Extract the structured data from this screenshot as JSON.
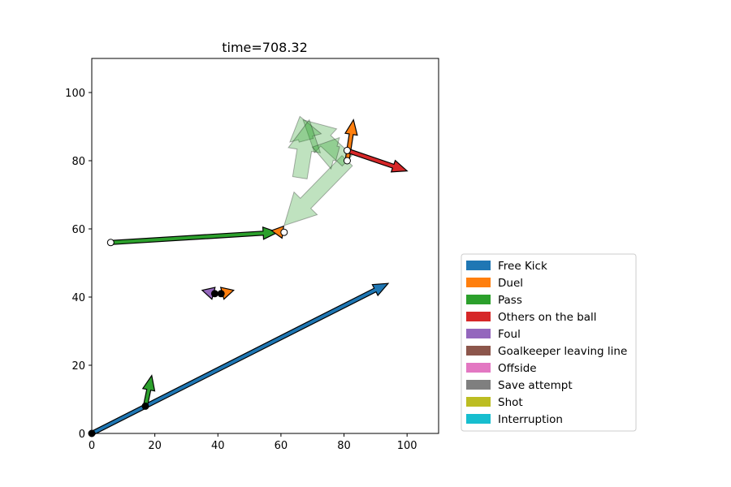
{
  "chart_data": {
    "type": "scatter",
    "title": "time=708.32",
    "xlabel": "",
    "ylabel": "",
    "xlim": [
      0,
      110
    ],
    "ylim": [
      0,
      110
    ],
    "x_ticks": [
      0,
      20,
      40,
      60,
      80,
      100
    ],
    "y_ticks": [
      0,
      20,
      40,
      60,
      80,
      100
    ],
    "grid": false,
    "legend_position": "outside-right-bottom",
    "legend": [
      {
        "label": "Free Kick",
        "color": "#1f77b4"
      },
      {
        "label": "Duel",
        "color": "#ff7f0e"
      },
      {
        "label": "Pass",
        "color": "#2ca02c"
      },
      {
        "label": "Others on the ball",
        "color": "#d62728"
      },
      {
        "label": "Foul",
        "color": "#9467bd"
      },
      {
        "label": "Goalkeeper leaving line",
        "color": "#8c564b"
      },
      {
        "label": "Offside",
        "color": "#e377c2"
      },
      {
        "label": "Save attempt",
        "color": "#7f7f7f"
      },
      {
        "label": "Shot",
        "color": "#bcbd22"
      },
      {
        "label": "Interruption",
        "color": "#17becf"
      }
    ],
    "faded_events": [
      {
        "type": "Pass",
        "start": [
          81,
          80
        ],
        "end": [
          61,
          61
        ]
      },
      {
        "type": "Pass",
        "start": [
          81,
          80
        ],
        "end": [
          67,
          92
        ]
      },
      {
        "type": "Pass",
        "start": [
          68,
          86
        ],
        "end": [
          66,
          93
        ]
      },
      {
        "type": "Pass",
        "start": [
          66,
          75
        ],
        "end": [
          69,
          92
        ]
      },
      {
        "type": "Pass",
        "start": [
          78,
          82
        ],
        "end": [
          70,
          84
        ]
      }
    ],
    "events": [
      {
        "type": "Free Kick",
        "start": [
          0,
          0
        ],
        "end": [
          94,
          44
        ],
        "marker": "filled"
      },
      {
        "type": "Pass",
        "start": [
          17,
          8
        ],
        "end": [
          19,
          17
        ],
        "marker": "filled"
      },
      {
        "type": "Pass",
        "start": [
          6,
          56
        ],
        "end": [
          59,
          59
        ],
        "marker": "open"
      },
      {
        "type": "Duel",
        "start": [
          61,
          59
        ],
        "end": [
          57,
          59.5
        ],
        "marker": "open"
      },
      {
        "type": "Foul",
        "start": [
          39,
          41
        ],
        "end": [
          35,
          42
        ],
        "marker": "filled"
      },
      {
        "type": "Duel",
        "start": [
          41,
          41
        ],
        "end": [
          45,
          42
        ],
        "marker": "filled"
      },
      {
        "type": "Duel",
        "start": [
          81,
          80
        ],
        "end": [
          83,
          92
        ],
        "marker": "open"
      },
      {
        "type": "Others on the ball",
        "start": [
          81,
          83
        ],
        "end": [
          100,
          77
        ],
        "marker": "open"
      }
    ]
  }
}
